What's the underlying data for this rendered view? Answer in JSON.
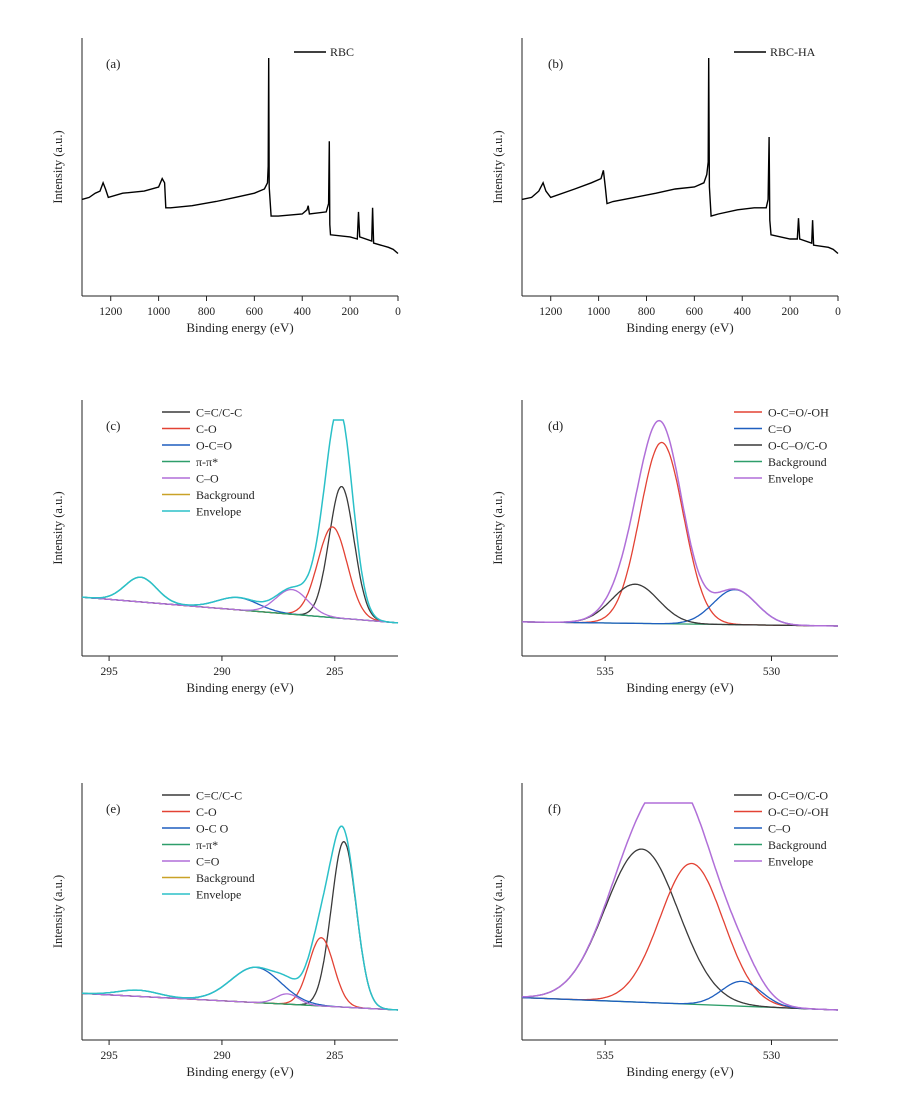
{
  "chart_data": [
    {
      "type": "line",
      "panel_label": "(a)",
      "xlabel": "Binding energy (eV)",
      "ylabel": "Intensity (a.u.)",
      "xlim": [
        1320,
        0
      ],
      "ylim": [
        0,
        100
      ],
      "x_ticks": [
        "1200",
        "1000",
        "800",
        "600",
        "400",
        "200",
        "0"
      ],
      "x_tick_values": [
        1200,
        1000,
        800,
        600,
        400,
        200,
        0
      ],
      "legend_position": "top-right",
      "series": [
        {
          "name": "RBC",
          "color": "#000000",
          "points": [
            [
              1320,
              32
            ],
            [
              1290,
              33
            ],
            [
              1265,
              35
            ],
            [
              1245,
              36
            ],
            [
              1232,
              40
            ],
            [
              1222,
              37
            ],
            [
              1210,
              33
            ],
            [
              1150,
              35
            ],
            [
              1060,
              36
            ],
            [
              1000,
              38
            ],
            [
              985,
              42
            ],
            [
              975,
              40
            ],
            [
              970,
              28
            ],
            [
              950,
              28
            ],
            [
              860,
              29
            ],
            [
              760,
              31
            ],
            [
              680,
              33
            ],
            [
              600,
              35
            ],
            [
              558,
              37
            ],
            [
              545,
              40
            ],
            [
              542,
              48
            ],
            [
              540,
              100
            ],
            [
              538,
              38
            ],
            [
              530,
              24
            ],
            [
              500,
              24
            ],
            [
              400,
              25
            ],
            [
              380,
              27
            ],
            [
              375,
              29
            ],
            [
              370,
              25
            ],
            [
              300,
              26
            ],
            [
              290,
              30
            ],
            [
              287,
              60
            ],
            [
              285,
              20
            ],
            [
              282,
              15
            ],
            [
              200,
              14
            ],
            [
              170,
              13
            ],
            [
              165,
              26
            ],
            [
              160,
              14
            ],
            [
              110,
              12
            ],
            [
              106,
              28
            ],
            [
              102,
              11
            ],
            [
              40,
              9
            ],
            [
              20,
              8
            ],
            [
              0,
              6
            ]
          ]
        }
      ]
    },
    {
      "type": "line",
      "panel_label": "(b)",
      "xlabel": "Binding energy (eV)",
      "ylabel": "Intensity (a.u.)",
      "xlim": [
        1320,
        0
      ],
      "ylim": [
        0,
        100
      ],
      "x_ticks": [
        "1200",
        "1000",
        "800",
        "600",
        "400",
        "200",
        "0"
      ],
      "x_tick_values": [
        1200,
        1000,
        800,
        600,
        400,
        200,
        0
      ],
      "legend_position": "top-right",
      "series": [
        {
          "name": "RBC-HA",
          "color": "#000000",
          "points": [
            [
              1320,
              32
            ],
            [
              1280,
              33
            ],
            [
              1250,
              36
            ],
            [
              1232,
              40
            ],
            [
              1220,
              36
            ],
            [
              1200,
              33
            ],
            [
              1100,
              37
            ],
            [
              1030,
              40
            ],
            [
              990,
              42
            ],
            [
              980,
              46
            ],
            [
              972,
              38
            ],
            [
              965,
              30
            ],
            [
              940,
              31
            ],
            [
              850,
              33
            ],
            [
              760,
              35
            ],
            [
              680,
              37
            ],
            [
              600,
              38
            ],
            [
              560,
              40
            ],
            [
              548,
              44
            ],
            [
              542,
              50
            ],
            [
              540,
              100
            ],
            [
              537,
              38
            ],
            [
              530,
              24
            ],
            [
              500,
              25
            ],
            [
              420,
              27
            ],
            [
              350,
              28
            ],
            [
              300,
              28
            ],
            [
              292,
              32
            ],
            [
              288,
              62
            ],
            [
              285,
              22
            ],
            [
              280,
              15
            ],
            [
              200,
              13
            ],
            [
              170,
              13
            ],
            [
              165,
              23
            ],
            [
              160,
              13
            ],
            [
              110,
              11
            ],
            [
              106,
              22
            ],
            [
              102,
              10
            ],
            [
              40,
              9
            ],
            [
              20,
              8
            ],
            [
              0,
              6
            ]
          ]
        }
      ]
    },
    {
      "type": "line",
      "panel_label": "(c)",
      "xlabel": "Binding energy (eV)",
      "ylabel": "Intensity (a.u.)",
      "xlim": [
        296.2,
        282.2
      ],
      "ylim": [
        0,
        100
      ],
      "x_ticks": [
        "295",
        "290",
        "285"
      ],
      "x_tick_values": [
        295,
        290,
        285
      ],
      "legend_position": "top-left",
      "baseline": {
        "x_start": 296.2,
        "y_start": 14,
        "x_end": 282.2,
        "y_end": 1.5
      },
      "peaks": [
        {
          "name": "C=C/C-C",
          "color": "#3a3a3a",
          "center": 284.7,
          "height": 64,
          "width": 0.55
        },
        {
          "name": "C-O",
          "color": "#e34234",
          "center": 285.1,
          "height": 44,
          "width": 0.65
        },
        {
          "name": "O-C=O",
          "color": "#1f5fbf",
          "center": 289.3,
          "height": 6,
          "width": 0.9
        },
        {
          "name": "π-π*",
          "color": "#2e9e6a",
          "center": 293.6,
          "height": 12,
          "width": 0.7
        },
        {
          "name": "C–O",
          "color": "#b06fd8",
          "center": 286.9,
          "height": 12,
          "width": 0.7
        }
      ],
      "background_series": {
        "name": "Background",
        "color": "#c9a227"
      },
      "envelope_series": {
        "name": "Envelope",
        "color": "#2bc0c8"
      },
      "envelope_peak": 100
    },
    {
      "type": "line",
      "panel_label": "(d)",
      "xlabel": "Binding energy (eV)",
      "ylabel": "Intensity (a.u.)",
      "xlim": [
        537.5,
        528
      ],
      "ylim": [
        0,
        100
      ],
      "x_ticks": [
        "535",
        "530"
      ],
      "x_tick_values": [
        535,
        530
      ],
      "legend_position": "top-right",
      "baseline": {
        "x_start": 537.5,
        "y_start": 2,
        "x_end": 528,
        "y_end": 0
      },
      "peaks": [
        {
          "name": "O-C=O/-OH",
          "color": "#e34234",
          "center": 533.3,
          "height": 88,
          "width": 0.65
        },
        {
          "name": "C=O",
          "color": "#1f5fbf",
          "center": 531.1,
          "height": 17,
          "width": 0.65
        },
        {
          "name": "O-C–O/C-O",
          "color": "#3a3a3a",
          "center": 534.1,
          "height": 19,
          "width": 0.7
        }
      ],
      "background_series": {
        "name": "Background",
        "color": "#2e9e6a"
      },
      "envelope_series": {
        "name": "Envelope",
        "color": "#b06fd8"
      },
      "envelope_peak": 100
    },
    {
      "type": "line",
      "panel_label": "(e)",
      "xlabel": "Binding energy (eV)",
      "ylabel": "Intensity (a.u.)",
      "xlim": [
        296.2,
        282.2
      ],
      "ylim": [
        0,
        100
      ],
      "x_ticks": [
        "295",
        "290",
        "285"
      ],
      "x_tick_values": [
        295,
        290,
        285
      ],
      "legend_position": "top-left",
      "baseline": {
        "x_start": 296.2,
        "y_start": 8,
        "x_end": 282.2,
        "y_end": 0
      },
      "peaks": [
        {
          "name": "C=C/C-C",
          "color": "#3a3a3a",
          "center": 284.6,
          "height": 80,
          "width": 0.55
        },
        {
          "name": "C-O",
          "color": "#e34234",
          "center": 285.6,
          "height": 33,
          "width": 0.55
        },
        {
          "name": "O-C  O",
          "color": "#1f5fbf",
          "center": 288.5,
          "height": 17,
          "width": 1.1
        },
        {
          "name": "π-π*",
          "color": "#2e9e6a",
          "center": 293.7,
          "height": 3,
          "width": 0.9
        },
        {
          "name": "C=O",
          "color": "#b06fd8",
          "center": 287.1,
          "height": 5,
          "width": 0.5
        }
      ],
      "background_series": {
        "name": "Background",
        "color": "#c9a227"
      },
      "envelope_series": {
        "name": "Envelope",
        "color": "#2bc0c8"
      },
      "envelope_peak": 100
    },
    {
      "type": "line",
      "panel_label": "(f)",
      "xlabel": "Binding energy (eV)",
      "ylabel": "Intensity (a.u.)",
      "xlim": [
        537.5,
        528
      ],
      "ylim": [
        0,
        100
      ],
      "x_ticks": [
        "535",
        "530"
      ],
      "x_tick_values": [
        535,
        530
      ],
      "legend_position": "top-right",
      "baseline": {
        "x_start": 537.5,
        "y_start": 6,
        "x_end": 528,
        "y_end": 0
      },
      "peaks": [
        {
          "name": "O-C=O/C-O",
          "color": "#3a3a3a",
          "center": 533.9,
          "height": 74,
          "width": 1.1
        },
        {
          "name": "O-C=O/-OH",
          "color": "#e34234",
          "center": 532.4,
          "height": 68,
          "width": 0.95
        },
        {
          "name": "C–O",
          "color": "#1f5fbf",
          "center": 530.9,
          "height": 12,
          "width": 0.6
        }
      ],
      "background_series": {
        "name": "Background",
        "color": "#2e9e6a"
      },
      "envelope_series": {
        "name": "Envelope",
        "color": "#b06fd8"
      },
      "envelope_peak": 100
    }
  ]
}
